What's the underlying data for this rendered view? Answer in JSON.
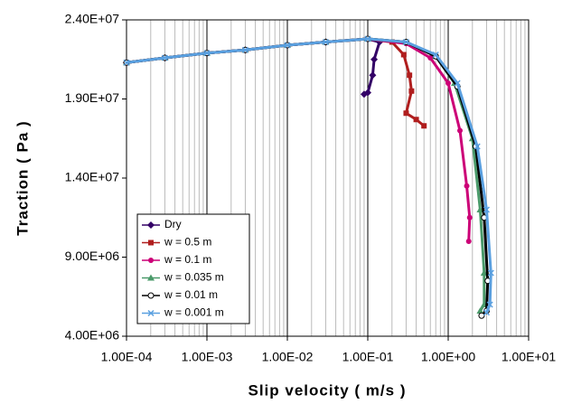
{
  "chart_data": {
    "type": "line",
    "x_label": "Slip velocity ( m/s )",
    "y_label": "Traction ( Pa )",
    "x_log": true,
    "grid": true,
    "minor_grid": true,
    "legend": "lower-left",
    "xlim": [
      0.0001,
      10
    ],
    "xticks": [
      {
        "value": 0.0001,
        "label": "1.00E-04"
      },
      {
        "value": 0.001,
        "label": "1.00E-03"
      },
      {
        "value": 0.01,
        "label": "1.00E-02"
      },
      {
        "value": 0.1,
        "label": "1.00E-01"
      },
      {
        "value": 1,
        "label": "1.00E+00"
      },
      {
        "value": 10,
        "label": "1.00E+01"
      }
    ],
    "ylim": [
      4000000,
      24000000
    ],
    "yticks": [
      {
        "value": 4000000,
        "label": "4.00E+06"
      },
      {
        "value": 9000000,
        "label": "9.00E+06"
      },
      {
        "value": 14000000,
        "label": "1.40E+07"
      },
      {
        "value": 19000000,
        "label": "1.90E+07"
      },
      {
        "value": 24000000,
        "label": "2.40E+07"
      }
    ],
    "series": [
      {
        "name": "Dry",
        "color": "#330066",
        "marker": "diamond",
        "x": [
          0.0001,
          0.0003,
          0.001,
          0.003,
          0.01,
          0.03,
          0.1,
          0.14,
          0.12,
          0.115,
          0.1,
          0.09
        ],
        "values": [
          21300000,
          21600000,
          21900000,
          22100000,
          22400000,
          22600000,
          22800000,
          22600000,
          21500000,
          20500000,
          19400000,
          19300000
        ]
      },
      {
        "name": "w = 0.5 m",
        "color": "#b01e1e",
        "marker": "square",
        "x": [
          0.0001,
          0.0003,
          0.001,
          0.003,
          0.01,
          0.03,
          0.1,
          0.2,
          0.28,
          0.33,
          0.35,
          0.3,
          0.4,
          0.5
        ],
        "values": [
          21300000,
          21600000,
          21900000,
          22100000,
          22400000,
          22600000,
          22800000,
          22600000,
          21800000,
          20500000,
          19500000,
          18100000,
          17700000,
          17300000
        ]
      },
      {
        "name": "w = 0.1 m",
        "color": "#cc0077",
        "marker": "circle",
        "x": [
          0.0001,
          0.0003,
          0.001,
          0.003,
          0.01,
          0.03,
          0.1,
          0.3,
          0.6,
          1,
          1.4,
          1.7,
          1.85,
          1.8
        ],
        "values": [
          21300000,
          21600000,
          21900000,
          22100000,
          22400000,
          22600000,
          22800000,
          22500000,
          21600000,
          20000000,
          17000000,
          13500000,
          11500000,
          10000000
        ]
      },
      {
        "name": "w = 0.035 m",
        "color": "#4a9a6a",
        "marker": "triangle",
        "x": [
          0.0001,
          0.0003,
          0.001,
          0.003,
          0.01,
          0.03,
          0.1,
          0.3,
          0.7,
          1.2,
          2,
          2.5,
          2.8,
          2.8,
          2.5
        ],
        "values": [
          21300000,
          21600000,
          21900000,
          22100000,
          22400000,
          22600000,
          22800000,
          22600000,
          21700000,
          20000000,
          16500000,
          12000000,
          8000000,
          6000000,
          5600000
        ]
      },
      {
        "name": "w = 0.01 m",
        "color": "#000000",
        "marker": "open-circle",
        "x": [
          0.0001,
          0.0003,
          0.001,
          0.003,
          0.01,
          0.03,
          0.1,
          0.3,
          0.7,
          1.3,
          2.2,
          2.8,
          3.1,
          3,
          2.6
        ],
        "values": [
          21300000,
          21600000,
          21900000,
          22100000,
          22400000,
          22600000,
          22800000,
          22600000,
          21700000,
          19800000,
          16000000,
          11500000,
          7500000,
          5600000,
          5300000
        ]
      },
      {
        "name": "w = 0.001 m",
        "color": "#5aa0e0",
        "marker": "x",
        "x": [
          0.0001,
          0.0003,
          0.001,
          0.003,
          0.01,
          0.03,
          0.1,
          0.3,
          0.7,
          1.3,
          2.3,
          3,
          3.4,
          3.3,
          3
        ],
        "values": [
          21300000,
          21600000,
          21900000,
          22100000,
          22400000,
          22600000,
          22800000,
          22600000,
          21800000,
          20000000,
          16000000,
          12000000,
          8000000,
          6000000,
          5500000
        ]
      }
    ]
  }
}
